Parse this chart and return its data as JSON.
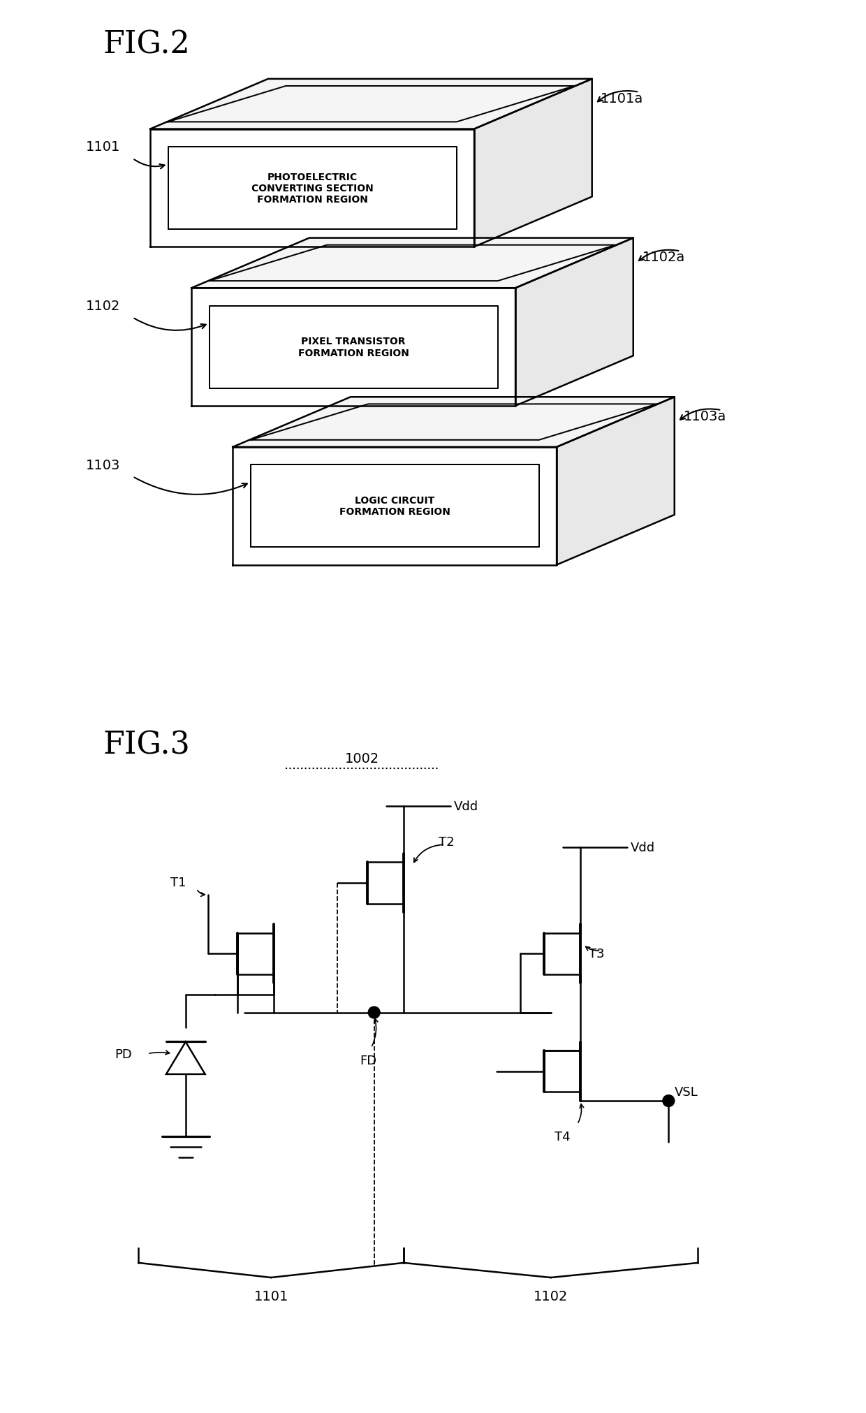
{
  "fig2_title": "FIG.2",
  "fig3_title": "FIG.3",
  "background": "#ffffff",
  "line_color": "#000000",
  "label_1101": "1101",
  "label_1102": "1102",
  "label_1103": "1103",
  "label_1101a": "1101a",
  "label_1102a": "1102a",
  "label_1103a": "1103a",
  "text_layer1": "PHOTOELECTRIC\nCONVERTING SECTION\nFORMATION REGION",
  "text_layer2": "PIXEL TRANSISTOR\nFORMATION REGION",
  "text_layer3": "LOGIC CIRCUIT\nFORMATION REGION",
  "circuit_labels": {
    "T1": "T1",
    "T2": "T2",
    "T3": "T3",
    "T4": "T4",
    "PD": "PD",
    "FD": "FD",
    "Vdd1": "Vdd",
    "Vdd2": "Vdd",
    "VSL": "VSL",
    "1002": "1002",
    "1101": "1101",
    "1102": "1102"
  }
}
